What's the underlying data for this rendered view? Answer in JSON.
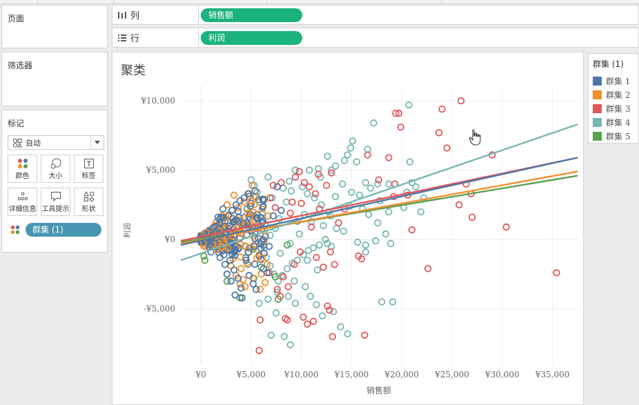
{
  "shelves": {
    "pages": {
      "title": "页面"
    },
    "columns": {
      "label": "列",
      "pill": "销售额"
    },
    "rows": {
      "label": "行",
      "pill": "利润"
    }
  },
  "filters": {
    "title": "筛选器"
  },
  "marks": {
    "title": "标记",
    "mark_type": "自动",
    "buttons": [
      {
        "label": "颜色",
        "icon": "color-dots-icon"
      },
      {
        "label": "大小",
        "icon": "size-icon"
      },
      {
        "label": "标签",
        "icon": "label-t-icon"
      },
      {
        "label": "详细信息",
        "icon": "detail-dots-icon"
      },
      {
        "label": "工具提示",
        "icon": "tooltip-icon"
      },
      {
        "label": "形状",
        "icon": "shape-icon"
      }
    ],
    "color_field": "群集 (1)"
  },
  "legend": {
    "title": "群集 (1)",
    "items": [
      {
        "label": "群集 1",
        "color": "#4e79a7"
      },
      {
        "label": "群集 2",
        "color": "#f28e2b"
      },
      {
        "label": "群集 3",
        "color": "#e15759"
      },
      {
        "label": "群集 4",
        "color": "#76b7b2"
      },
      {
        "label": "群集 5",
        "color": "#59a14f"
      }
    ]
  },
  "chart_data": {
    "type": "scatter",
    "title": "聚类",
    "xlabel": "销售额",
    "ylabel": "利润",
    "xlim": [
      -2000,
      37500
    ],
    "ylim": [
      -9000,
      11000
    ],
    "x_ticks": [
      0,
      5000,
      10000,
      15000,
      20000,
      25000,
      30000,
      35000
    ],
    "x_tick_labels": [
      "¥0",
      "¥5,000",
      "¥10,000",
      "¥15,000",
      "¥20,000",
      "¥25,000",
      "¥30,000",
      "¥35,000"
    ],
    "y_ticks": [
      10000,
      5000,
      0,
      -5000
    ],
    "y_tick_labels": [
      "¥10,000",
      "¥5,000",
      "¥0",
      "-¥5,000"
    ],
    "grid": true,
    "marker": "open-circle",
    "series": [
      {
        "name": "群集 1",
        "color": "#4e79a7",
        "points": [
          [
            200,
            300
          ],
          [
            500,
            -200
          ],
          [
            900,
            600
          ],
          [
            1200,
            -400
          ],
          [
            1500,
            900
          ],
          [
            1800,
            -700
          ],
          [
            2100,
            1300
          ],
          [
            2300,
            -1100
          ],
          [
            2500,
            400
          ],
          [
            2700,
            1700
          ],
          [
            2900,
            -1500
          ],
          [
            3100,
            2100
          ],
          [
            3300,
            -2200
          ],
          [
            3500,
            2500
          ],
          [
            3700,
            -2800
          ],
          [
            3900,
            2800
          ],
          [
            4000,
            -3500
          ],
          [
            4100,
            -4200
          ],
          [
            3000,
            -3000
          ],
          [
            2600,
            -2500
          ],
          [
            4300,
            3000
          ],
          [
            4500,
            -1500
          ],
          [
            4700,
            3300
          ],
          [
            2200,
            2200
          ],
          [
            1700,
            1600
          ],
          [
            1000,
            -900
          ],
          [
            800,
            300
          ],
          [
            600,
            500
          ],
          [
            3600,
            900
          ],
          [
            2800,
            600
          ],
          [
            1400,
            -200
          ],
          [
            3800,
            -600
          ],
          [
            4600,
            1200
          ],
          [
            5000,
            2600
          ],
          [
            5200,
            -3200
          ],
          [
            2400,
            -1800
          ],
          [
            3200,
            1500
          ],
          [
            1900,
            -1300
          ],
          [
            4800,
            -2600
          ],
          [
            5400,
            3500
          ],
          [
            7600,
            3800
          ],
          [
            8000,
            2100
          ],
          [
            6800,
            -500
          ],
          [
            7200,
            1700
          ],
          [
            5800,
            -1200
          ],
          [
            6200,
            2400
          ],
          [
            6600,
            -2400
          ],
          [
            5600,
            1800
          ],
          [
            3400,
            -4000
          ],
          [
            5500,
            -3600
          ]
        ]
      },
      {
        "name": "群集 2",
        "color": "#f28e2b",
        "points": [
          [
            1500,
            1200
          ],
          [
            2200,
            -800
          ],
          [
            2800,
            1800
          ],
          [
            3200,
            -1400
          ],
          [
            3700,
            2300
          ],
          [
            4000,
            -2100
          ],
          [
            4300,
            2700
          ],
          [
            4600,
            -1700
          ],
          [
            4900,
            1500
          ],
          [
            5200,
            -2800
          ],
          [
            5500,
            3100
          ],
          [
            5800,
            -1100
          ],
          [
            6100,
            2200
          ],
          [
            6400,
            -3100
          ],
          [
            6700,
            1700
          ],
          [
            3500,
            -2600
          ],
          [
            2600,
            2500
          ],
          [
            4100,
            900
          ],
          [
            4800,
            3300
          ],
          [
            5300,
            -400
          ],
          [
            3900,
            -3200
          ],
          [
            6000,
            -2500
          ],
          [
            5100,
            3900
          ],
          [
            4400,
            -3400
          ],
          [
            3000,
            -1900
          ],
          [
            5600,
            800
          ],
          [
            6300,
            2900
          ],
          [
            4700,
            -900
          ],
          [
            2900,
            600
          ],
          [
            5900,
            -3600
          ],
          [
            3300,
            3200
          ],
          [
            4200,
            -2900
          ],
          [
            6600,
            -1800
          ],
          [
            2100,
            1700
          ],
          [
            3600,
            -500
          ]
        ]
      },
      {
        "name": "群集 3",
        "color": "#e15759",
        "points": [
          [
            19400,
            9100
          ],
          [
            19700,
            9100
          ],
          [
            19900,
            8100
          ],
          [
            24000,
            9400
          ],
          [
            25900,
            10000
          ],
          [
            23700,
            7700
          ],
          [
            24500,
            6600
          ],
          [
            18700,
            5900
          ],
          [
            29000,
            6100
          ],
          [
            26400,
            4000
          ],
          [
            26900,
            3300
          ],
          [
            25700,
            2500
          ],
          [
            27000,
            1600
          ],
          [
            30400,
            900
          ],
          [
            20600,
            3200
          ],
          [
            19200,
            3100
          ],
          [
            21000,
            700
          ],
          [
            22600,
            -2100
          ],
          [
            35400,
            -2400
          ],
          [
            16600,
            6100
          ],
          [
            17700,
            4300
          ],
          [
            19300,
            4000
          ],
          [
            15700,
            -1200
          ],
          [
            16000,
            -1400
          ],
          [
            16300,
            -6900
          ],
          [
            12800,
            -5100
          ],
          [
            13100,
            -7000
          ],
          [
            11700,
            4700
          ],
          [
            11400,
            3300
          ],
          [
            11800,
            2200
          ],
          [
            12200,
            -2000
          ],
          [
            13300,
            -1800
          ],
          [
            10200,
            -5600
          ],
          [
            10600,
            -6100
          ],
          [
            11200,
            -5900
          ],
          [
            12600,
            -4800
          ],
          [
            8400,
            -5700
          ],
          [
            8600,
            -5800
          ],
          [
            5900,
            -5800
          ],
          [
            5800,
            -8000
          ],
          [
            9400,
            4500
          ],
          [
            9800,
            4900
          ],
          [
            10300,
            4100
          ],
          [
            10800,
            3800
          ],
          [
            9100,
            2700
          ],
          [
            8900,
            1900
          ],
          [
            10000,
            2600
          ],
          [
            12500,
            3900
          ],
          [
            13000,
            4800
          ],
          [
            14300,
            2200
          ],
          [
            13700,
            1200
          ],
          [
            12900,
            -900
          ],
          [
            11500,
            -1300
          ],
          [
            8200,
            -2700
          ],
          [
            8700,
            -3400
          ],
          [
            9300,
            -1800
          ],
          [
            7600,
            -3600
          ],
          [
            7900,
            -4100
          ],
          [
            6800,
            -2400
          ],
          [
            7200,
            3900
          ],
          [
            6900,
            3000
          ],
          [
            7400,
            2300
          ],
          [
            8000,
            4100
          ],
          [
            9900,
            -900
          ],
          [
            11000,
            900
          ]
        ]
      },
      {
        "name": "群集 4",
        "color": "#76b7b2",
        "points": [
          [
            20700,
            9700
          ],
          [
            17200,
            8400
          ],
          [
            15100,
            7100
          ],
          [
            14900,
            6600
          ],
          [
            16600,
            6500
          ],
          [
            14600,
            6100
          ],
          [
            14300,
            5700
          ],
          [
            13400,
            5300
          ],
          [
            13000,
            5000
          ],
          [
            15500,
            5600
          ],
          [
            12600,
            6000
          ],
          [
            16400,
            4100
          ],
          [
            17600,
            4000
          ],
          [
            18700,
            4000
          ],
          [
            20800,
            5600
          ],
          [
            21000,
            4100
          ],
          [
            21400,
            3800
          ],
          [
            20500,
            3400
          ],
          [
            17800,
            2800
          ],
          [
            16100,
            2200
          ],
          [
            16700,
            1800
          ],
          [
            18700,
            2000
          ],
          [
            20200,
            2300
          ],
          [
            21900,
            2000
          ],
          [
            22200,
            3000
          ],
          [
            17600,
            1200
          ],
          [
            18400,
            400
          ],
          [
            17400,
            -100
          ],
          [
            18900,
            -300
          ],
          [
            16400,
            -400
          ],
          [
            15600,
            -200
          ],
          [
            13000,
            -500
          ],
          [
            12600,
            -300
          ],
          [
            12400,
            0
          ],
          [
            11800,
            -400
          ],
          [
            11200,
            -600
          ],
          [
            10700,
            -800
          ],
          [
            10200,
            -1100
          ],
          [
            9600,
            -1500
          ],
          [
            9100,
            -1700
          ],
          [
            8600,
            -2100
          ],
          [
            8100,
            -2600
          ],
          [
            7700,
            -3000
          ],
          [
            7300,
            -2500
          ],
          [
            6900,
            -1900
          ],
          [
            6500,
            -1300
          ],
          [
            10400,
            -3400
          ],
          [
            10900,
            -4100
          ],
          [
            11500,
            -4700
          ],
          [
            12100,
            -5500
          ],
          [
            13200,
            -5200
          ],
          [
            13900,
            -6300
          ],
          [
            14600,
            -6800
          ],
          [
            18000,
            -4500
          ],
          [
            19100,
            -4500
          ],
          [
            16400,
            -900
          ],
          [
            8300,
            -7000
          ],
          [
            7600,
            -3800
          ],
          [
            9300,
            -3000
          ],
          [
            10100,
            3800
          ],
          [
            10600,
            3300
          ],
          [
            11300,
            3000
          ],
          [
            12000,
            2500
          ],
          [
            12700,
            2000
          ],
          [
            13400,
            3100
          ],
          [
            14100,
            4000
          ],
          [
            15000,
            3400
          ],
          [
            11700,
            5100
          ],
          [
            11900,
            4500
          ],
          [
            10800,
            5000
          ],
          [
            9400,
            5000
          ],
          [
            8800,
            4200
          ],
          [
            9000,
            3500
          ],
          [
            8500,
            2700
          ],
          [
            8200,
            3700
          ],
          [
            7800,
            1500
          ],
          [
            7400,
            800
          ],
          [
            6900,
            300
          ],
          [
            6400,
            1100
          ],
          [
            6100,
            1900
          ],
          [
            5800,
            2700
          ],
          [
            5600,
            3400
          ],
          [
            5300,
            3900
          ],
          [
            5000,
            4300
          ],
          [
            6700,
            4500
          ],
          [
            7100,
            3000
          ],
          [
            9600,
            1300
          ],
          [
            10300,
            1800
          ],
          [
            11000,
            1300
          ],
          [
            12200,
            1000
          ],
          [
            13500,
            800
          ],
          [
            14200,
            600
          ],
          [
            12900,
            1700
          ],
          [
            14800,
            2400
          ],
          [
            15800,
            3200
          ],
          [
            16900,
            3700
          ],
          [
            9800,
            400
          ],
          [
            8900,
            -300
          ],
          [
            7900,
            -1000
          ],
          [
            6300,
            -600
          ],
          [
            10600,
            -1500
          ],
          [
            11600,
            -2200
          ],
          [
            8700,
            -4100
          ],
          [
            9400,
            -4600
          ],
          [
            6700,
            -4300
          ],
          [
            7500,
            -5300
          ],
          [
            8900,
            -7600
          ],
          [
            7000,
            -6900
          ],
          [
            5800,
            -4600
          ],
          [
            5300,
            -2800
          ],
          [
            4700,
            -1800
          ]
        ]
      },
      {
        "name": "群集 5",
        "color": "#59a14f",
        "points": [
          [
            400,
            -1500
          ],
          [
            300,
            -1200
          ],
          [
            3900,
            -4200
          ],
          [
            7700,
            -4300
          ],
          [
            5200,
            -700
          ],
          [
            4600,
            2200
          ],
          [
            3400,
            1400
          ],
          [
            6000,
            -2000
          ],
          [
            2600,
            -3000
          ],
          [
            7400,
            -2700
          ],
          [
            1200,
            -500
          ],
          [
            8600,
            -400
          ]
        ]
      }
    ],
    "trend_lines": [
      {
        "name": "群集 1",
        "color": "#4e79a7",
        "from": [
          -2000,
          -400
        ],
        "to": [
          37500,
          5900
        ]
      },
      {
        "name": "群集 2",
        "color": "#f28e2b",
        "from": [
          -2000,
          -300
        ],
        "to": [
          37500,
          4900
        ]
      },
      {
        "name": "群集 3",
        "color": "#e15759",
        "from": [
          -2000,
          -100
        ],
        "to": [
          37500,
          5900
        ]
      },
      {
        "name": "群集 4",
        "color": "#76b7b2",
        "from": [
          -2000,
          -1500
        ],
        "to": [
          37500,
          8300
        ]
      },
      {
        "name": "群集 5",
        "color": "#59a14f",
        "from": [
          -2000,
          -200
        ],
        "to": [
          37500,
          4600
        ]
      }
    ]
  }
}
